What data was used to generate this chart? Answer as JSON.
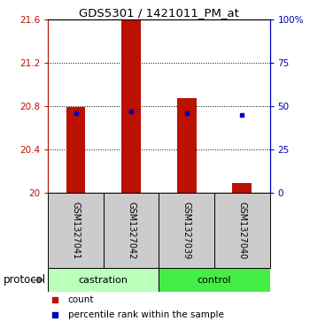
{
  "title": "GDS5301 / 1421011_PM_at",
  "samples": [
    "GSM1327041",
    "GSM1327042",
    "GSM1327039",
    "GSM1327040"
  ],
  "protocols": [
    "castration",
    "castration",
    "control",
    "control"
  ],
  "bar_bottoms": [
    20.0,
    20.0,
    20.0,
    20.0
  ],
  "bar_tops": [
    20.79,
    21.6,
    20.87,
    20.09
  ],
  "blue_y": [
    20.73,
    20.75,
    20.73,
    20.715
  ],
  "ylim": [
    20.0,
    21.6
  ],
  "y2lim": [
    0,
    100
  ],
  "yticks": [
    20.0,
    20.4,
    20.8,
    21.2,
    21.6
  ],
  "ytick_labels": [
    "20",
    "20.4",
    "20.8",
    "21.2",
    "21.6"
  ],
  "y2ticks": [
    0,
    25,
    50,
    75,
    100
  ],
  "y2tick_labels": [
    "0",
    "25",
    "50",
    "75",
    "100%"
  ],
  "bar_color": "#bb1100",
  "blue_color": "#0000bb",
  "castration_color": "#bbffbb",
  "control_color": "#44ee44",
  "sample_box_color": "#cccccc",
  "bar_width": 0.35,
  "bg_color": "#ffffff"
}
